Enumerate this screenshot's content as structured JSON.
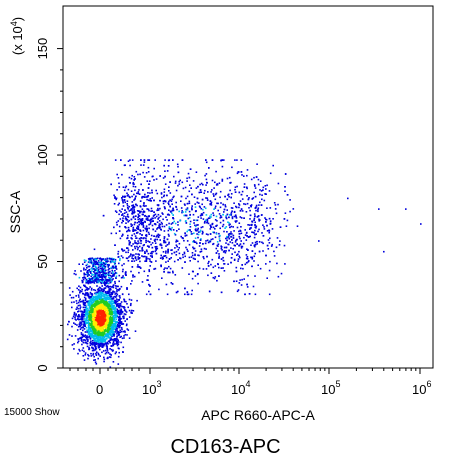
{
  "chart_data": {
    "type": "scatter",
    "style": "density dot plot (flow cytometry)",
    "xlabel": "APC R660-APC-A",
    "ylabel": "SSC-A",
    "y_multiplier_label": "(x 10",
    "y_multiplier_exp": "4",
    "y_multiplier_close": ")",
    "ylim": [
      0,
      170
    ],
    "y_ticks": [
      {
        "value": 0,
        "label": "0"
      },
      {
        "value": 50,
        "label": "50"
      },
      {
        "value": 100,
        "label": "100"
      },
      {
        "value": 150,
        "label": "150"
      }
    ],
    "x_scale": "biexponential",
    "x_ticks": [
      {
        "label": "0",
        "exp": ""
      },
      {
        "label": "10",
        "exp": "3"
      },
      {
        "label": "10",
        "exp": "4"
      },
      {
        "label": "10",
        "exp": "5"
      },
      {
        "label": "10",
        "exp": "6"
      }
    ],
    "populations": [
      {
        "name": "dense cluster",
        "center_x_label": "0",
        "center_y": 24,
        "density": "high"
      },
      {
        "name": "scattered",
        "x_range": [
          "10^2",
          "10^5"
        ],
        "y_range": [
          40,
          98
        ],
        "density": "low"
      }
    ],
    "colors": {
      "high": "#ff2200",
      "mid_high": "#ffee00",
      "mid": "#22cc22",
      "mid_low": "#00bbee",
      "low": "#0000dd"
    },
    "event_count_label": "15000 Show",
    "title": "CD163-APC"
  }
}
